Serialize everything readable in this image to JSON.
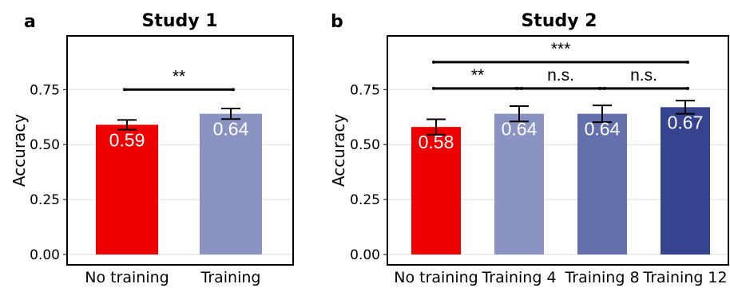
{
  "chart_data": [
    {
      "panel": "a",
      "type": "bar",
      "title": "Study 1",
      "ylabel": "Accuracy",
      "xlabel": "",
      "ylim": [
        0,
        0.95
      ],
      "yticks": [
        0.0,
        0.25,
        0.5,
        0.75
      ],
      "ytick_labels": [
        "0.00",
        "0.25",
        "0.50",
        "0.75"
      ],
      "grid": true,
      "categories": [
        "No training",
        "Training"
      ],
      "values": [
        0.59,
        0.64
      ],
      "errors": [
        0.022,
        0.024
      ],
      "data_labels": [
        "0.59",
        "0.64"
      ],
      "colors": [
        "#ee0000",
        "#8a93c2"
      ],
      "significance": [
        {
          "from": 0,
          "to": 1,
          "label": "**",
          "y": 0.75
        }
      ]
    },
    {
      "panel": "b",
      "type": "bar",
      "title": "Study 2",
      "ylabel": "Accuracy",
      "xlabel": "",
      "ylim": [
        0,
        0.95
      ],
      "yticks": [
        0.0,
        0.25,
        0.5,
        0.75
      ],
      "ytick_labels": [
        "0.00",
        "0.25",
        "0.50",
        "0.75"
      ],
      "grid": true,
      "categories": [
        "No training",
        "Training 4",
        "Training 8",
        "Training 12"
      ],
      "values": [
        0.58,
        0.64,
        0.64,
        0.67
      ],
      "errors": [
        0.035,
        0.035,
        0.038,
        0.03
      ],
      "data_labels": [
        "0.58",
        "0.64",
        "0.64",
        "0.67"
      ],
      "colors": [
        "#ee0000",
        "#8a93c2",
        "#6470ab",
        "#36448f"
      ],
      "significance": [
        {
          "from": 0,
          "to": 1,
          "label": "**",
          "y": 0.755
        },
        {
          "from": 1,
          "to": 2,
          "label": "n.s.",
          "y": 0.755
        },
        {
          "from": 2,
          "to": 3,
          "label": "n.s.",
          "y": 0.755
        },
        {
          "from": 0,
          "to": 3,
          "label": "***",
          "y": 0.875
        }
      ]
    }
  ]
}
